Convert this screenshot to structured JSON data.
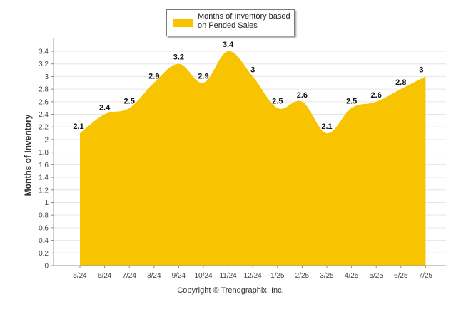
{
  "chart_data": {
    "type": "area",
    "categories": [
      "5/24",
      "6/24",
      "7/24",
      "8/24",
      "9/24",
      "10/24",
      "11/24",
      "12/24",
      "1/25",
      "2/25",
      "3/25",
      "4/25",
      "5/25",
      "6/25",
      "7/25"
    ],
    "series": [
      {
        "name": "Months of Inventory based on Pended Sales",
        "values": [
          2.1,
          2.4,
          2.5,
          2.9,
          3.2,
          2.9,
          3.4,
          3,
          2.5,
          2.6,
          2.1,
          2.5,
          2.6,
          2.8,
          3
        ]
      }
    ],
    "ylabel": "Months of Inventory",
    "xlabel": "",
    "ylim": [
      0,
      3.4
    ],
    "yticks": [
      "0",
      "0.2",
      "0.4",
      "0.6",
      "0.8",
      "1",
      "1.2",
      "1.4",
      "1.6",
      "1.8",
      "2",
      "2.2",
      "2.4",
      "2.6",
      "2.8",
      "3",
      "3.2",
      "3.4"
    ],
    "grid": "horizontal",
    "legend": "top-center",
    "color": "#F8C300"
  },
  "legend": {
    "label": "Months of Inventory based on Pended Sales"
  },
  "footer": {
    "copyright": "Copyright © Trendgraphix, Inc."
  }
}
